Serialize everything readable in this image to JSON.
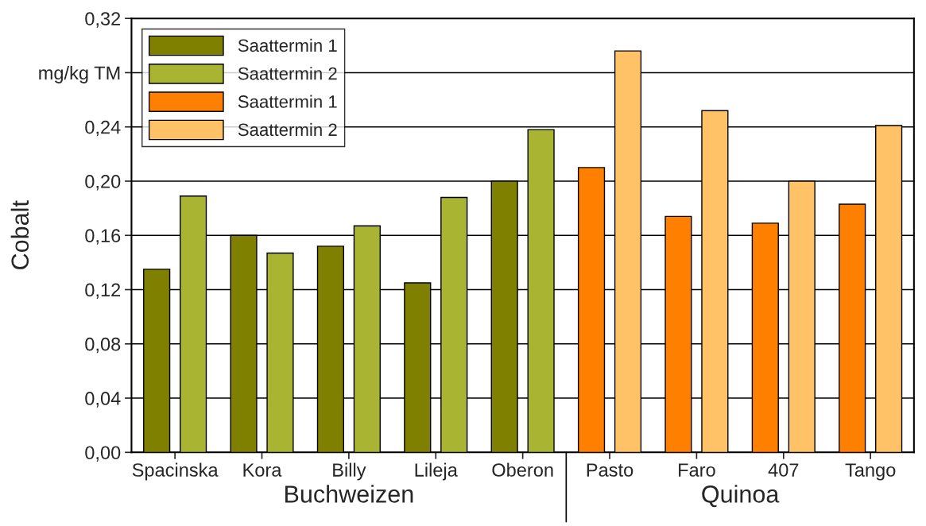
{
  "chart_data": {
    "type": "bar",
    "ylabel": "Cobalt",
    "categories": [
      "Spacinska",
      "Kora",
      "Billy",
      "Lileja",
      "Oberon",
      "Pasto",
      "Faro",
      "407",
      "Tango"
    ],
    "series": [
      {
        "name": "Saattermin 1",
        "color": "#808000",
        "values": [
          0.135,
          0.16,
          0.152,
          0.125,
          0.2,
          null,
          null,
          null,
          null
        ]
      },
      {
        "name": "Saattermin 2",
        "color": "#a8b432",
        "values": [
          0.189,
          0.147,
          0.167,
          0.188,
          0.238,
          null,
          null,
          null,
          null
        ]
      },
      {
        "name": "Saattermin 1",
        "color": "#ff8000",
        "values": [
          null,
          null,
          null,
          null,
          null,
          0.21,
          0.174,
          0.169,
          0.183
        ]
      },
      {
        "name": "Saattermin 2",
        "color": "#ffc266",
        "values": [
          null,
          null,
          null,
          null,
          null,
          0.296,
          0.252,
          0.2,
          0.241
        ]
      }
    ],
    "ylim": [
      0,
      0.32
    ],
    "yticks": [
      {
        "value": 0,
        "label": "0,00"
      },
      {
        "value": 0.04,
        "label": "0,04"
      },
      {
        "value": 0.08,
        "label": "0,08"
      },
      {
        "value": 0.12,
        "label": "0,12"
      },
      {
        "value": 0.16,
        "label": "0,16"
      },
      {
        "value": 0.2,
        "label": "0,20"
      },
      {
        "value": 0.24,
        "label": "0,24"
      },
      {
        "value": 0.28,
        "label": "mg/kg TM"
      },
      {
        "value": 0.32,
        "label": "0,32"
      }
    ],
    "grid": "y",
    "legend": "top left",
    "annotations": [
      "Buchweizen",
      "Quinoa"
    ]
  }
}
